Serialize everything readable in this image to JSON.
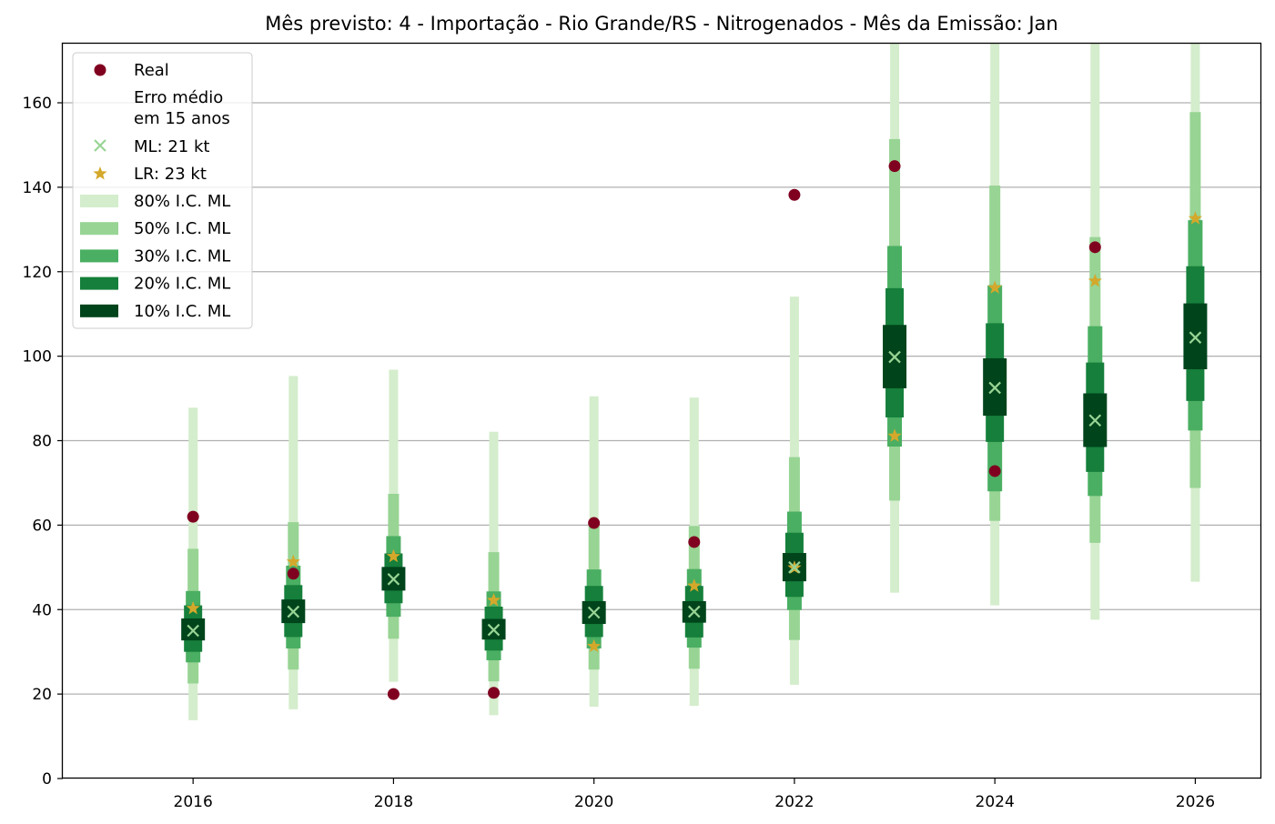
{
  "chart_data": {
    "type": "interval",
    "title": "Mês previsto: 4 - Importação - Rio Grande/RS - Nitrogenados - Mês da Emissão: Jan",
    "xlabel": "",
    "ylabel": "",
    "xlim": [
      2014.7,
      2026.65
    ],
    "ylim": [
      0,
      174
    ],
    "x_ticks": [
      2016,
      2018,
      2020,
      2022,
      2024,
      2026
    ],
    "y_ticks": [
      0,
      20,
      40,
      60,
      80,
      100,
      120,
      140,
      160
    ],
    "grid": "horizontal",
    "legend_position": "top-left",
    "years": [
      2016,
      2017,
      2018,
      2019,
      2020,
      2021,
      2022,
      2023,
      2024,
      2025,
      2026
    ],
    "real": [
      62,
      48.5,
      20,
      20.3,
      60.5,
      56,
      138.2,
      145,
      72.8,
      125.8,
      null
    ],
    "ml": [
      35,
      39.5,
      47.2,
      35.2,
      39.3,
      39.5,
      50,
      99.8,
      92.5,
      84.8,
      104.4
    ],
    "lr": [
      40.3,
      51.3,
      52.6,
      42.2,
      31.3,
      45.6,
      49.9,
      81.1,
      116.2,
      117.8,
      132.6
    ],
    "intervals": [
      {
        "name": "80% I.C. ML",
        "color": "#d4edcc",
        "lower": [
          13.8,
          16.4,
          22.9,
          15,
          17,
          17.2,
          22.2,
          44,
          41,
          37.6,
          46.6
        ],
        "upper": [
          87.8,
          95.3,
          96.8,
          82.1,
          90.5,
          90.2,
          114.1,
          174,
          174,
          174,
          174
        ]
      },
      {
        "name": "50% I.C. ML",
        "color": "#98d494",
        "lower": [
          22.5,
          25.8,
          33.1,
          23,
          25.8,
          26,
          32.8,
          65.8,
          61,
          55.8,
          68.8
        ],
        "upper": [
          54.4,
          60.7,
          67.4,
          53.6,
          60,
          59.8,
          76.1,
          151.4,
          140.4,
          128.2,
          157.8
        ]
      },
      {
        "name": "30% I.C. ML",
        "color": "#4aaf62",
        "lower": [
          27.5,
          30.8,
          38.3,
          28,
          30.8,
          31,
          39.9,
          78.6,
          68,
          66.9,
          82.4
        ],
        "upper": [
          44.4,
          50.4,
          57.4,
          44.3,
          49.5,
          49.6,
          63.2,
          126.1,
          116.8,
          107.1,
          132.2
        ]
      },
      {
        "name": "20% I.C. ML",
        "color": "#157f3b",
        "lower": [
          30,
          33.5,
          41.5,
          30.3,
          33.5,
          33.4,
          43,
          85.5,
          79.7,
          72.6,
          89.4
        ],
        "upper": [
          41,
          45.8,
          53.3,
          40.7,
          45.6,
          45.6,
          58.2,
          116.1,
          107.8,
          98.5,
          121.3
        ]
      },
      {
        "name": "10% I.C. ML",
        "color": "#00441b",
        "lower": [
          32.7,
          36.8,
          44.5,
          32.9,
          36.6,
          36.9,
          46.7,
          92.4,
          85.9,
          78.5,
          96.9
        ],
        "upper": [
          37.9,
          42.4,
          50.1,
          37.8,
          42,
          42,
          53.4,
          107.4,
          99.5,
          91.2,
          112.5
        ]
      }
    ],
    "series_colors": {
      "real": "#800020",
      "ml": "#98d494",
      "lr": "#d4a82b"
    }
  },
  "legend": {
    "real": "Real",
    "erro_line1": "Erro médio",
    "erro_line2": "em 15 anos",
    "ml": "ML: 21 kt",
    "lr": "LR: 23 kt"
  }
}
